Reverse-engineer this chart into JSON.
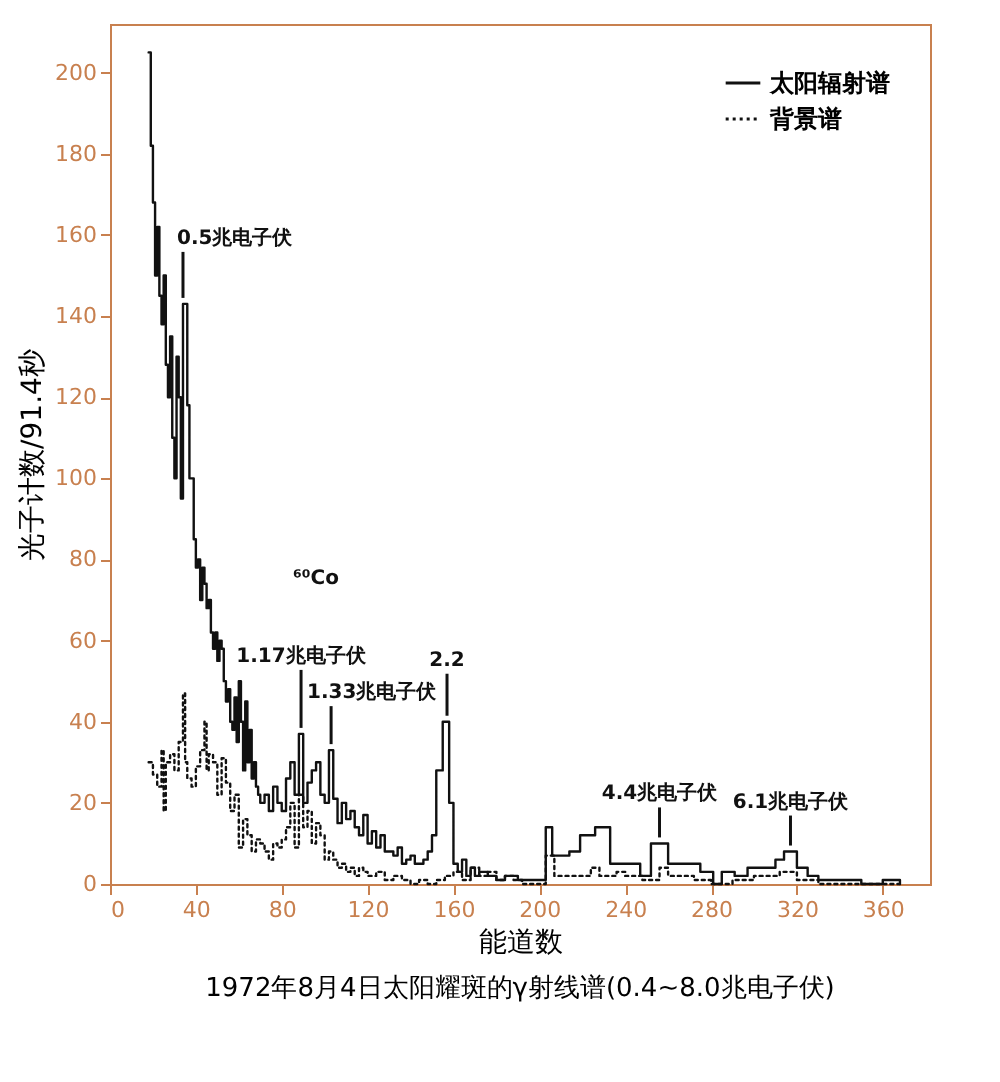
{
  "chart_data": {
    "type": "step",
    "title": "1972年8月4日太阳耀斑的γ射线谱(0.4~8.0兆电子伏)",
    "xlabel": "能道数",
    "ylabel": "光子计数/91.4秒",
    "xlim": [
      0,
      382
    ],
    "xticks": [
      0,
      40,
      80,
      120,
      160,
      200,
      240,
      280,
      320,
      360
    ],
    "ylim": [
      0,
      212
    ],
    "yticks": [
      0,
      20,
      40,
      60,
      80,
      100,
      120,
      140,
      160,
      180,
      200
    ],
    "grid": false,
    "legend": "top right",
    "series": [
      {
        "name": "太阳辐射谱",
        "color": "#111111",
        "line_style": "solid",
        "x": [
          18,
          19,
          20,
          21,
          22,
          23,
          24,
          25,
          26,
          27,
          28,
          29,
          30,
          31,
          32,
          33,
          34,
          36,
          37,
          38,
          39,
          40,
          41,
          42,
          43,
          44,
          45,
          46,
          47,
          48,
          49,
          50,
          51,
          52,
          53,
          54,
          55,
          56,
          57,
          58,
          59,
          60,
          61,
          62,
          63,
          64,
          65,
          66,
          67,
          68,
          69,
          70,
          72,
          74,
          76,
          78,
          80,
          82,
          84,
          86,
          88,
          90,
          92,
          94,
          96,
          98,
          100,
          102,
          104,
          106,
          108,
          110,
          112,
          114,
          116,
          118,
          120,
          122,
          124,
          126,
          128,
          130,
          132,
          134,
          136,
          138,
          140,
          142,
          144,
          146,
          148,
          150,
          152,
          155,
          158,
          160,
          162,
          164,
          166,
          168,
          170,
          172,
          176,
          180,
          184,
          190,
          196,
          200,
          203,
          206,
          214,
          219,
          226,
          233,
          247,
          252,
          260,
          275,
          281,
          285,
          291,
          297,
          310,
          314,
          320,
          325,
          330,
          340,
          350,
          360,
          368
        ],
        "values": [
          205,
          182,
          168,
          150,
          162,
          145,
          138,
          150,
          128,
          120,
          135,
          110,
          100,
          130,
          120,
          95,
          143,
          118,
          100,
          100,
          85,
          78,
          80,
          70,
          78,
          74,
          68,
          70,
          62,
          58,
          62,
          55,
          60,
          58,
          50,
          45,
          48,
          40,
          38,
          46,
          35,
          50,
          40,
          28,
          45,
          30,
          38,
          26,
          30,
          24,
          22,
          20,
          22,
          18,
          24,
          20,
          18,
          26,
          30,
          22,
          37,
          20,
          25,
          28,
          30,
          22,
          20,
          33,
          21,
          15,
          20,
          16,
          18,
          14,
          12,
          17,
          10,
          13,
          9,
          12,
          8,
          8,
          7,
          9,
          5,
          6,
          7,
          5,
          5,
          6,
          8,
          12,
          28,
          40,
          20,
          5,
          3,
          6,
          2,
          4,
          2,
          3,
          2,
          1,
          2,
          1,
          1,
          1,
          14,
          7,
          8,
          12,
          14,
          5,
          2,
          10,
          5,
          3,
          0,
          3,
          2,
          4,
          6,
          8,
          4,
          2,
          1,
          1,
          0,
          1,
          0
        ]
      },
      {
        "name": "背景谱",
        "color": "#111111",
        "line_style": "dotted",
        "x": [
          18,
          20,
          22,
          24,
          25,
          26,
          28,
          30,
          32,
          34,
          35,
          36,
          38,
          40,
          42,
          44,
          45,
          46,
          48,
          50,
          52,
          54,
          56,
          58,
          60,
          62,
          64,
          66,
          68,
          70,
          72,
          74,
          76,
          78,
          80,
          82,
          84,
          86,
          88,
          90,
          92,
          94,
          96,
          98,
          100,
          102,
          104,
          106,
          108,
          110,
          112,
          114,
          116,
          118,
          120,
          124,
          128,
          132,
          136,
          140,
          144,
          148,
          152,
          156,
          160,
          164,
          168,
          172,
          176,
          180,
          184,
          188,
          192,
          200,
          203,
          207,
          220,
          224,
          228,
          236,
          240,
          248,
          256,
          260,
          272,
          280,
          290,
          300,
          312,
          320,
          330,
          368
        ],
        "values": [
          30,
          27,
          24,
          33,
          18,
          30,
          32,
          28,
          35,
          47,
          30,
          26,
          24,
          29,
          33,
          40,
          28,
          32,
          30,
          22,
          31,
          25,
          18,
          22,
          9,
          16,
          12,
          8,
          11,
          10,
          8,
          6,
          10,
          9,
          11,
          14,
          20,
          9,
          22,
          14,
          18,
          10,
          15,
          12,
          6,
          8,
          6,
          4,
          5,
          3,
          4,
          2,
          4,
          3,
          2,
          3,
          1,
          2,
          1,
          0,
          1,
          0,
          1,
          2,
          3,
          1,
          4,
          2,
          3,
          1,
          2,
          1,
          0,
          0,
          7,
          2,
          2,
          4,
          2,
          3,
          2,
          1,
          4,
          2,
          1,
          0,
          1,
          2,
          3,
          1,
          0,
          0
        ]
      }
    ],
    "annotations": [
      {
        "text": "0.5兆电子伏",
        "x": 34,
        "y": 143
      },
      "⁶⁰Co",
      {
        "text": "1.17兆电子伏",
        "x": 89,
        "y": 37
      },
      {
        "text": "1.33兆电子伏",
        "x": 103,
        "y": 33
      },
      {
        "text": "2.2",
        "x": 157,
        "y": 40
      },
      {
        "text": "4.4兆电子伏",
        "x": 256,
        "y": 10
      },
      {
        "text": "6.1兆电子伏",
        "x": 317,
        "y": 8
      }
    ]
  }
}
